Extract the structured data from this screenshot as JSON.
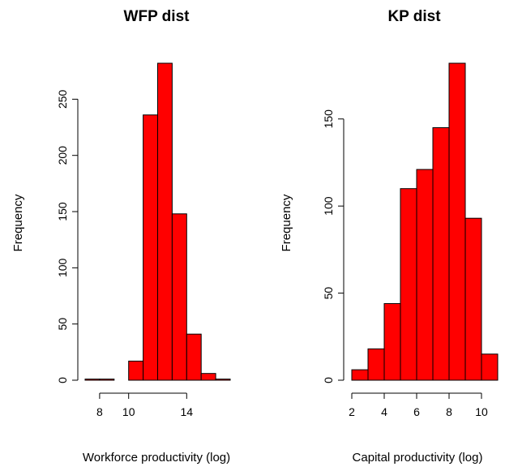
{
  "chart_data": [
    {
      "type": "bar",
      "title": "WFP dist",
      "xlabel": "Workforce productivity (log)",
      "ylabel": "Frequency",
      "bin_edges": [
        7,
        8,
        9,
        10,
        11,
        12,
        13,
        14,
        15,
        16,
        17
      ],
      "values": [
        1,
        1,
        0,
        17,
        236,
        282,
        148,
        41,
        6,
        1
      ],
      "xlim": [
        7,
        17
      ],
      "ylim": [
        0,
        282
      ],
      "x_ticks": [
        "8",
        "10",
        "14"
      ],
      "y_ticks": [
        "0",
        "50",
        "100",
        "150",
        "200",
        "250"
      ],
      "bar_color": "#ff0000",
      "grid": false
    },
    {
      "type": "bar",
      "title": "KP dist",
      "xlabel": "Capital productivity (log)",
      "ylabel": "Frequency",
      "bin_edges": [
        2,
        3,
        4,
        5,
        6,
        7,
        8,
        9,
        10,
        11
      ],
      "values": [
        6,
        18,
        44,
        110,
        121,
        145,
        182,
        93,
        15
      ],
      "xlim": [
        2,
        11
      ],
      "ylim": [
        0,
        182
      ],
      "x_ticks": [
        "2",
        "4",
        "6",
        "8",
        "10"
      ],
      "y_ticks": [
        "0",
        "50",
        "100",
        "150"
      ],
      "bar_color": "#ff0000",
      "grid": false
    }
  ]
}
